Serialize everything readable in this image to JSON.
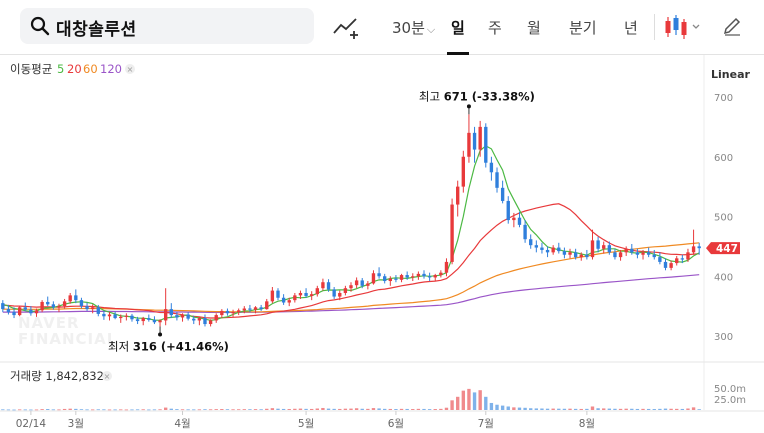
{
  "search": {
    "query": "대창솔루션"
  },
  "periods": [
    {
      "label": "30분",
      "caret": "⌵",
      "active": false
    },
    {
      "label": "일",
      "active": true
    },
    {
      "label": "주",
      "active": false
    },
    {
      "label": "월",
      "active": false
    },
    {
      "label": "분기",
      "active": false
    },
    {
      "label": "년",
      "active": false
    }
  ],
  "scale_label": "Linear",
  "colors": {
    "up": "#e8393b",
    "down": "#2f7fdc",
    "ma5": "#4cb944",
    "ma20": "#e8393b",
    "ma60": "#f08a23",
    "ma120": "#9a55c8",
    "price_badge": "#e8393b"
  },
  "moving_average": {
    "label": "이동평균",
    "periods": [
      "5",
      "20",
      "60",
      "120"
    ]
  },
  "volume_label": "거래량 1,842,832",
  "current_price": "447",
  "watermark": "NAVER FINANCIAL",
  "chart_data": {
    "type": "candlestick",
    "price_axis": {
      "ticks": [
        "700",
        "600",
        "500",
        "400",
        "300"
      ],
      "ylim": [
        290,
        715
      ]
    },
    "volume_axis": {
      "ticks": [
        "50.0m",
        "25.0m"
      ]
    },
    "x_ticks": [
      "02/14",
      "3월",
      "4월",
      "5월",
      "6월",
      "7월",
      "8월"
    ],
    "annotations": {
      "high": {
        "label": "최고",
        "value": "671 (-33.38%)"
      },
      "low": {
        "label": "최저",
        "value": "316 (+41.46%)"
      }
    },
    "ohlc": [
      [
        355,
        360,
        340,
        345
      ],
      [
        345,
        352,
        336,
        340
      ],
      [
        340,
        348,
        330,
        335
      ],
      [
        335,
        350,
        333,
        348
      ],
      [
        348,
        356,
        342,
        344
      ],
      [
        344,
        350,
        334,
        338
      ],
      [
        338,
        346,
        332,
        343
      ],
      [
        343,
        360,
        340,
        357
      ],
      [
        357,
        366,
        350,
        353
      ],
      [
        353,
        358,
        344,
        348
      ],
      [
        348,
        354,
        340,
        350
      ],
      [
        350,
        362,
        346,
        358
      ],
      [
        358,
        372,
        354,
        368
      ],
      [
        368,
        378,
        355,
        360
      ],
      [
        360,
        364,
        346,
        350
      ],
      [
        350,
        356,
        342,
        345
      ],
      [
        345,
        353,
        338,
        348
      ],
      [
        348,
        352,
        333,
        337
      ],
      [
        337,
        342,
        327,
        333
      ],
      [
        333,
        340,
        326,
        336
      ],
      [
        336,
        341,
        328,
        330
      ],
      [
        330,
        336,
        322,
        332
      ],
      [
        332,
        338,
        326,
        334
      ],
      [
        334,
        337,
        324,
        328
      ],
      [
        328,
        332,
        320,
        325
      ],
      [
        325,
        332,
        318,
        330
      ],
      [
        330,
        336,
        324,
        327
      ],
      [
        327,
        333,
        320,
        323
      ],
      [
        323,
        328,
        316,
        326
      ],
      [
        326,
        380,
        318,
        345
      ],
      [
        345,
        355,
        330,
        335
      ],
      [
        335,
        340,
        326,
        331
      ],
      [
        331,
        338,
        324,
        336
      ],
      [
        336,
        340,
        326,
        329
      ],
      [
        329,
        334,
        320,
        326
      ],
      [
        326,
        332,
        318,
        330
      ],
      [
        330,
        336,
        316,
        320
      ],
      [
        320,
        328,
        316,
        326
      ],
      [
        326,
        338,
        322,
        335
      ],
      [
        335,
        345,
        330,
        342
      ],
      [
        342,
        346,
        334,
        338
      ],
      [
        338,
        344,
        332,
        340
      ],
      [
        340,
        346,
        335,
        343
      ],
      [
        343,
        350,
        338,
        346
      ],
      [
        346,
        352,
        340,
        344
      ],
      [
        344,
        350,
        338,
        348
      ],
      [
        348,
        352,
        342,
        345
      ],
      [
        345,
        362,
        344,
        358
      ],
      [
        358,
        382,
        355,
        376
      ],
      [
        376,
        380,
        360,
        364
      ],
      [
        364,
        370,
        352,
        356
      ],
      [
        356,
        364,
        350,
        360
      ],
      [
        360,
        372,
        356,
        368
      ],
      [
        368,
        376,
        362,
        372
      ],
      [
        372,
        380,
        364,
        367
      ],
      [
        367,
        375,
        360,
        370
      ],
      [
        370,
        384,
        366,
        380
      ],
      [
        380,
        396,
        376,
        390
      ],
      [
        390,
        395,
        374,
        378
      ],
      [
        378,
        382,
        362,
        366
      ],
      [
        366,
        376,
        360,
        372
      ],
      [
        372,
        384,
        368,
        380
      ],
      [
        380,
        390,
        374,
        385
      ],
      [
        385,
        398,
        380,
        393
      ],
      [
        393,
        397,
        380,
        384
      ],
      [
        384,
        392,
        378,
        388
      ],
      [
        388,
        410,
        386,
        405
      ],
      [
        405,
        415,
        396,
        400
      ],
      [
        400,
        404,
        388,
        392
      ],
      [
        392,
        400,
        384,
        396
      ],
      [
        396,
        402,
        390,
        394
      ],
      [
        394,
        404,
        390,
        402
      ],
      [
        402,
        408,
        394,
        398
      ],
      [
        398,
        405,
        392,
        400
      ],
      [
        400,
        408,
        394,
        404
      ],
      [
        404,
        410,
        396,
        400
      ],
      [
        400,
        406,
        392,
        398
      ],
      [
        398,
        404,
        392,
        402
      ],
      [
        402,
        410,
        398,
        406
      ],
      [
        406,
        430,
        400,
        424
      ],
      [
        424,
        530,
        420,
        520
      ],
      [
        520,
        560,
        500,
        550
      ],
      [
        550,
        610,
        540,
        600
      ],
      [
        600,
        671,
        590,
        640
      ],
      [
        640,
        650,
        590,
        612
      ],
      [
        612,
        660,
        600,
        650
      ],
      [
        650,
        656,
        582,
        590
      ],
      [
        590,
        600,
        560,
        574
      ],
      [
        574,
        582,
        540,
        548
      ],
      [
        548,
        560,
        522,
        526
      ],
      [
        526,
        534,
        488,
        494
      ],
      [
        494,
        506,
        482,
        498
      ],
      [
        498,
        508,
        482,
        486
      ],
      [
        486,
        494,
        456,
        462
      ],
      [
        462,
        470,
        446,
        452
      ],
      [
        452,
        460,
        440,
        448
      ],
      [
        448,
        456,
        438,
        444
      ],
      [
        444,
        450,
        432,
        440
      ],
      [
        440,
        452,
        436,
        448
      ],
      [
        448,
        456,
        438,
        442
      ],
      [
        442,
        448,
        430,
        436
      ],
      [
        436,
        446,
        430,
        440
      ],
      [
        440,
        446,
        428,
        432
      ],
      [
        432,
        440,
        426,
        436
      ],
      [
        436,
        444,
        428,
        432
      ],
      [
        432,
        478,
        428,
        460
      ],
      [
        460,
        466,
        440,
        446
      ],
      [
        446,
        458,
        438,
        452
      ],
      [
        452,
        458,
        436,
        440
      ],
      [
        440,
        446,
        428,
        432
      ],
      [
        432,
        444,
        426,
        440
      ],
      [
        440,
        450,
        434,
        446
      ],
      [
        446,
        454,
        436,
        440
      ],
      [
        440,
        446,
        430,
        436
      ],
      [
        436,
        444,
        428,
        440
      ],
      [
        440,
        448,
        432,
        436
      ],
      [
        436,
        444,
        428,
        432
      ],
      [
        432,
        440,
        420,
        424
      ],
      [
        424,
        430,
        410,
        414
      ],
      [
        414,
        426,
        410,
        422
      ],
      [
        422,
        434,
        418,
        430
      ],
      [
        430,
        436,
        422,
        428
      ],
      [
        428,
        446,
        424,
        440
      ],
      [
        440,
        478,
        436,
        450
      ],
      [
        450,
        456,
        436,
        447
      ]
    ],
    "volume": [
      1.5,
      1.2,
      1.0,
      1.4,
      1.3,
      1.1,
      1.2,
      2.0,
      2.2,
      1.4,
      1.3,
      2.4,
      3.0,
      2.6,
      1.8,
      1.4,
      1.3,
      1.6,
      1.5,
      1.2,
      1.3,
      1.4,
      1.2,
      1.3,
      1.5,
      1.6,
      1.2,
      1.4,
      1.6,
      5.5,
      3.0,
      2.0,
      1.6,
      1.5,
      1.4,
      1.5,
      1.8,
      1.6,
      2.0,
      2.2,
      1.8,
      1.6,
      1.7,
      1.9,
      1.8,
      2.0,
      1.7,
      2.8,
      4.2,
      3.0,
      2.4,
      2.2,
      2.8,
      3.2,
      2.6,
      2.4,
      3.4,
      4.6,
      3.2,
      2.6,
      2.4,
      3.0,
      3.2,
      4.0,
      2.8,
      2.6,
      4.4,
      3.6,
      2.6,
      2.4,
      2.2,
      2.6,
      2.4,
      2.2,
      2.6,
      2.4,
      2.0,
      2.2,
      2.6,
      5.2,
      22,
      30,
      44,
      48,
      40,
      45,
      30,
      16,
      12,
      10,
      8,
      6,
      5.5,
      5,
      4,
      3.6,
      3.4,
      3,
      3.2,
      3,
      2.8,
      3,
      2.6,
      2.4,
      2.6,
      8,
      4,
      3.6,
      3.2,
      2.8,
      2.6,
      3,
      2.8,
      2.4,
      2.6,
      2.4,
      2.2,
      2.6,
      3.2,
      2.8,
      2.6,
      2.4,
      3.4,
      6,
      1.8
    ]
  }
}
